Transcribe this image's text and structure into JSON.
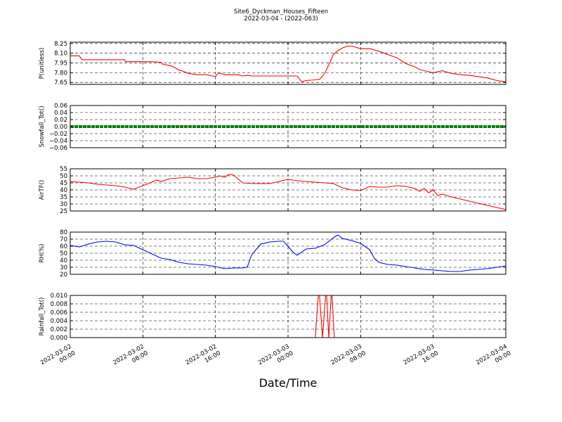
{
  "figure": {
    "title_line1": "Site6_Dyckman_Houses_Fifteen",
    "title_line2": "2022-03-04 - (2022-063)",
    "xlabel": "Date/Time",
    "x_ticks": [
      {
        "t": 0,
        "line1": "2022-03-02",
        "line2": "00:00"
      },
      {
        "t": 8,
        "line1": "2022-03-02",
        "line2": "08:00"
      },
      {
        "t": 16,
        "line1": "2022-03-02",
        "line2": "16:00"
      },
      {
        "t": 24,
        "line1": "2022-03-03",
        "line2": "00:00"
      },
      {
        "t": 32,
        "line1": "2022-03-03",
        "line2": "08:00"
      },
      {
        "t": 40,
        "line1": "2022-03-03",
        "line2": "16:00"
      },
      {
        "t": 48,
        "line1": "2022-03-04",
        "line2": "00:00"
      }
    ]
  },
  "chart_data": [
    {
      "type": "line",
      "ylabel": "P(unitless)",
      "color": "#ff0000",
      "xlim": [
        0,
        48
      ],
      "ylim": [
        7.62,
        8.27
      ],
      "yticks": [
        7.65,
        7.8,
        7.95,
        8.1,
        8.25
      ],
      "ytick_labels": [
        "7.65",
        "7.80",
        "7.95",
        "8.10",
        "8.25"
      ],
      "x": [
        0,
        1,
        1.3,
        2,
        4,
        5,
        6,
        6.1,
        7,
        8,
        9,
        10,
        10.2,
        11,
        11.5,
        12,
        12.5,
        13,
        14,
        14.5,
        15,
        16,
        16.3,
        17,
        18,
        18.5,
        19,
        19.5,
        20,
        22,
        24,
        25,
        25.5,
        26,
        27,
        27.5,
        28,
        28.5,
        29,
        29.5,
        30,
        30.5,
        31,
        32,
        33,
        34,
        35,
        36,
        37,
        38,
        38.5,
        39,
        40,
        41,
        42,
        43,
        44,
        45,
        46,
        47,
        48
      ],
      "y": [
        8.06,
        8.06,
        8.0,
        8.0,
        8.0,
        8.0,
        8.0,
        7.97,
        7.97,
        7.97,
        7.97,
        7.96,
        7.93,
        7.91,
        7.88,
        7.84,
        7.82,
        7.79,
        7.77,
        7.77,
        7.77,
        7.74,
        7.8,
        7.77,
        7.77,
        7.77,
        7.75,
        7.76,
        7.75,
        7.75,
        7.75,
        7.75,
        7.66,
        7.68,
        7.69,
        7.7,
        7.78,
        7.92,
        8.08,
        8.14,
        8.18,
        8.21,
        8.21,
        8.17,
        8.17,
        8.13,
        8.08,
        8.03,
        7.94,
        7.89,
        7.85,
        7.83,
        7.8,
        7.83,
        7.79,
        7.77,
        7.76,
        7.74,
        7.72,
        7.68,
        7.66
      ]
    },
    {
      "type": "line",
      "ylabel": "Snowfall_Tot()",
      "color": "#008000",
      "xlim": [
        0,
        48
      ],
      "ylim": [
        -0.06,
        0.06
      ],
      "yticks": [
        -0.06,
        -0.04,
        -0.02,
        0.0,
        0.02,
        0.04,
        0.06
      ],
      "ytick_labels": [
        "−0.06",
        "−0.04",
        "−0.02",
        "0.00",
        "0.02",
        "0.04",
        "0.06"
      ],
      "x": [
        0,
        48
      ],
      "y": [
        0,
        0
      ]
    },
    {
      "type": "line",
      "ylabel": "AirTF()",
      "color": "#ff0000",
      "xlim": [
        0,
        48
      ],
      "ylim": [
        25,
        55
      ],
      "yticks": [
        25,
        30,
        35,
        40,
        45,
        50,
        55
      ],
      "ytick_labels": [
        "25",
        "30",
        "35",
        "40",
        "45",
        "50",
        "55"
      ],
      "x": [
        0,
        1,
        2,
        3,
        4,
        5,
        6,
        7,
        8,
        9,
        9.5,
        10,
        11,
        12,
        13,
        14,
        15,
        16,
        16.5,
        17,
        17.5,
        18,
        19,
        20,
        21,
        22,
        23,
        24,
        25,
        26,
        27,
        28,
        29,
        30,
        31,
        32,
        33,
        34,
        35,
        36,
        37,
        38,
        38.5,
        39,
        39.5,
        40,
        40.5,
        41,
        42,
        43,
        44,
        45,
        46,
        47,
        48
      ],
      "y": [
        46,
        45.5,
        45,
        44,
        43.5,
        43,
        42,
        40.5,
        43,
        45.5,
        47,
        46,
        48,
        48.5,
        49,
        48,
        48,
        49,
        50,
        49,
        51,
        50.5,
        45,
        44.5,
        44.5,
        44.5,
        46,
        47.5,
        46.5,
        46,
        45.5,
        45,
        44.5,
        41.5,
        40,
        39.5,
        42.5,
        42,
        42,
        43,
        42.5,
        41,
        39,
        41,
        38,
        40,
        36,
        37,
        35,
        33.5,
        32,
        30.5,
        29,
        27.5,
        26
      ]
    },
    {
      "type": "line",
      "ylabel": "RH(%)",
      "color": "#0000ff",
      "xlim": [
        0,
        48
      ],
      "ylim": [
        20,
        80
      ],
      "yticks": [
        20,
        30,
        40,
        50,
        60,
        70,
        80
      ],
      "ytick_labels": [
        "20",
        "30",
        "40",
        "50",
        "60",
        "70",
        "80"
      ],
      "x": [
        0,
        1,
        2,
        3,
        4,
        5,
        6,
        7,
        8,
        9,
        10,
        11,
        12,
        13,
        14,
        15,
        16,
        17,
        18,
        19,
        19.5,
        20,
        21,
        22,
        23,
        23.5,
        24,
        24.5,
        25,
        26,
        27,
        28,
        29,
        29.5,
        30,
        31,
        32,
        33,
        33.5,
        34,
        35,
        36,
        37,
        38,
        39,
        40,
        41,
        42,
        43,
        44,
        45,
        46,
        47,
        48
      ],
      "y": [
        61,
        59,
        63,
        66,
        67,
        66,
        62,
        61,
        55,
        49,
        43,
        41,
        37,
        35,
        34,
        33,
        31,
        28,
        29,
        29,
        30,
        48,
        63,
        66,
        67,
        67,
        60,
        52,
        47,
        56,
        57,
        62,
        72,
        76,
        71,
        68,
        64,
        55,
        43,
        37,
        34,
        33,
        31,
        29,
        27,
        26,
        25,
        24,
        24,
        26,
        27,
        28,
        30,
        32
      ]
    },
    {
      "type": "line",
      "ylabel": "Rainfall_Tot()",
      "color": "#ff0000",
      "xlim": [
        0,
        48
      ],
      "ylim": [
        0,
        0.01
      ],
      "yticks": [
        0.0,
        0.002,
        0.004,
        0.006,
        0.008,
        0.01
      ],
      "ytick_labels": [
        "0.000",
        "0.002",
        "0.004",
        "0.006",
        "0.008",
        "0.010"
      ],
      "x": [
        0,
        27,
        27.4,
        27.8,
        28.2,
        28.5,
        28.8,
        29.1,
        48
      ],
      "y": [
        0,
        0,
        0.012,
        0,
        0.012,
        0,
        0.012,
        0,
        0
      ]
    }
  ]
}
